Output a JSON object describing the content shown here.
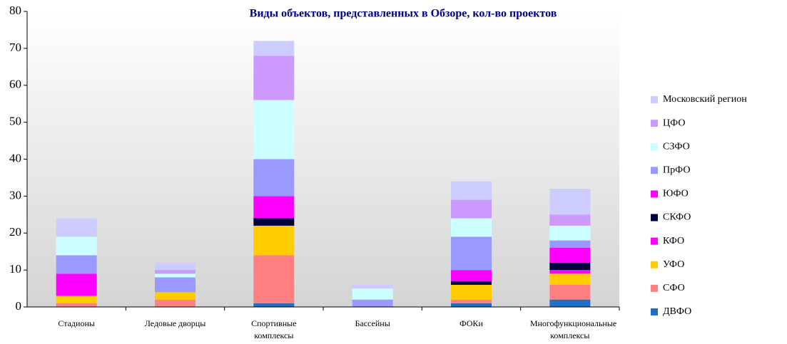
{
  "chart_data": {
    "type": "stacked_bar",
    "title": "Виды объектов, представленных в Обзоре, кол-во проектов",
    "categories": [
      "Стадионы",
      "Ледовые дворцы",
      "Спортивные комплексы",
      "Бассейны",
      "ФОКи",
      "Многофункциональные комплексы"
    ],
    "series": [
      {
        "name": "ДВФО",
        "color": "#1f6fc5",
        "values": [
          0,
          0,
          1,
          0,
          1,
          2
        ]
      },
      {
        "name": "СФО",
        "color": "#ff8080",
        "values": [
          1,
          2,
          13,
          0,
          1,
          4
        ]
      },
      {
        "name": "УФО",
        "color": "#ffcc00",
        "values": [
          2,
          2,
          8,
          0,
          4,
          3
        ]
      },
      {
        "name": "КФО",
        "color": "#ff00ff",
        "values": [
          6,
          0,
          0,
          0,
          0,
          1
        ]
      },
      {
        "name": "СКФО",
        "color": "#000040",
        "values": [
          0,
          0,
          2,
          0,
          1,
          2
        ]
      },
      {
        "name": "ЮФО",
        "color": "#ff00ff",
        "values": [
          0,
          0,
          6,
          0,
          3,
          4
        ]
      },
      {
        "name": "ПрФО",
        "color": "#9999ff",
        "values": [
          5,
          4,
          10,
          2,
          9,
          2
        ]
      },
      {
        "name": "СЗФО",
        "color": "#ccffff",
        "values": [
          5,
          1,
          16,
          3,
          5,
          4
        ]
      },
      {
        "name": "ЦФО",
        "color": "#cc99ff",
        "values": [
          0,
          1,
          12,
          0,
          5,
          3
        ]
      },
      {
        "name": "Московский регион",
        "color": "#ccccff",
        "values": [
          5,
          2,
          4,
          1,
          5,
          7
        ]
      }
    ],
    "ylim": [
      0,
      80
    ],
    "yticks": [
      0,
      10,
      20,
      30,
      40,
      50,
      60,
      70,
      80
    ]
  }
}
